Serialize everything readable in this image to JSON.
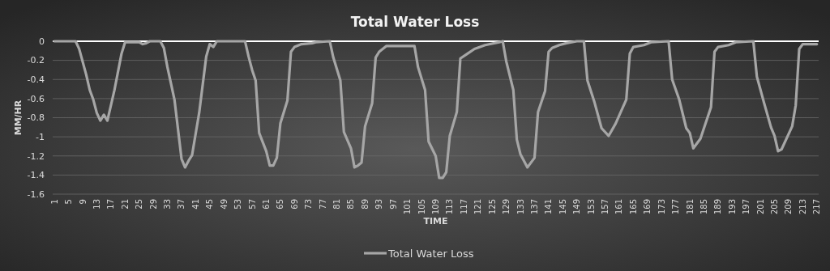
{
  "chart_data": {
    "type": "line",
    "title": "Total Water Loss",
    "xlabel": "TIME",
    "ylabel": "MM/HR",
    "xlim": [
      0.5,
      217.5
    ],
    "xticks": [
      1,
      5,
      9,
      13,
      17,
      21,
      25,
      29,
      33,
      37,
      41,
      45,
      49,
      53,
      57,
      61,
      65,
      69,
      73,
      77,
      81,
      85,
      89,
      93,
      97,
      101,
      105,
      109,
      113,
      117,
      121,
      125,
      129,
      133,
      137,
      141,
      145,
      149,
      153,
      157,
      161,
      165,
      169,
      173,
      177,
      181,
      185,
      189,
      193,
      197,
      201,
      205,
      209,
      213,
      217
    ],
    "ylim": [
      -1.6,
      0
    ],
    "yticks": [
      0,
      -0.2,
      -0.4,
      -0.6,
      -0.8,
      -1,
      -1.2,
      -1.4,
      -1.6
    ],
    "grid": "y",
    "legend": "bottom",
    "marker": "none",
    "line_style": "solid",
    "series": [
      {
        "name": "Total Water Loss",
        "color": "#a6a6a6",
        "x": [
          1,
          7,
          8,
          10,
          11,
          12,
          13,
          14,
          15,
          16,
          18,
          20,
          21,
          25,
          26,
          27,
          28,
          31,
          32,
          33,
          35,
          37,
          38,
          39,
          40,
          42,
          44,
          45,
          46,
          47,
          55,
          56,
          57,
          58,
          59,
          61,
          62,
          63,
          64,
          65,
          67,
          68,
          69,
          71,
          74,
          75,
          79,
          80,
          82,
          83,
          85,
          86,
          87,
          88,
          89,
          91,
          92,
          93,
          95,
          103,
          104,
          106,
          107,
          109,
          110,
          111,
          112,
          113,
          115,
          116,
          118,
          120,
          123,
          127,
          128,
          129,
          131,
          132,
          133,
          135,
          137,
          138,
          140,
          141,
          142,
          144,
          146,
          149,
          151,
          152,
          154,
          156,
          158,
          160,
          163,
          164,
          165,
          168,
          170,
          175,
          176,
          178,
          180,
          181,
          182,
          184,
          187,
          188,
          189,
          192,
          194,
          199,
          200,
          202,
          204,
          205,
          206,
          207,
          210,
          211,
          212,
          213,
          217
        ],
        "values": [
          0,
          0,
          -0.08,
          -0.35,
          -0.51,
          -0.61,
          -0.75,
          -0.83,
          -0.77,
          -0.83,
          -0.51,
          -0.13,
          -0.01,
          -0.01,
          -0.03,
          -0.02,
          0,
          0,
          -0.07,
          -0.27,
          -0.61,
          -1.23,
          -1.32,
          -1.25,
          -1.19,
          -0.75,
          -0.16,
          -0.03,
          -0.06,
          0,
          0,
          -0.16,
          -0.3,
          -0.41,
          -0.96,
          -1.15,
          -1.3,
          -1.3,
          -1.22,
          -0.86,
          -0.62,
          -0.11,
          -0.06,
          -0.03,
          -0.02,
          -0.01,
          0,
          -0.17,
          -0.41,
          -0.95,
          -1.12,
          -1.32,
          -1.3,
          -1.27,
          -0.89,
          -0.65,
          -0.17,
          -0.11,
          -0.05,
          -0.05,
          -0.27,
          -0.51,
          -1.05,
          -1.2,
          -1.43,
          -1.43,
          -1.37,
          -0.99,
          -0.74,
          -0.18,
          -0.13,
          -0.08,
          -0.04,
          -0.01,
          0,
          -0.21,
          -0.51,
          -1.03,
          -1.18,
          -1.32,
          -1.22,
          -0.74,
          -0.52,
          -0.11,
          -0.07,
          -0.04,
          -0.02,
          0,
          0,
          -0.41,
          -0.64,
          -0.91,
          -0.99,
          -0.86,
          -0.61,
          -0.13,
          -0.06,
          -0.04,
          -0.01,
          0,
          -0.4,
          -0.61,
          -0.91,
          -0.96,
          -1.12,
          -1.02,
          -0.69,
          -0.11,
          -0.06,
          -0.04,
          -0.01,
          0,
          -0.37,
          -0.64,
          -0.9,
          -0.99,
          -1.15,
          -1.13,
          -0.89,
          -0.67,
          -0.08,
          -0.03,
          -0.03
        ]
      }
    ]
  }
}
